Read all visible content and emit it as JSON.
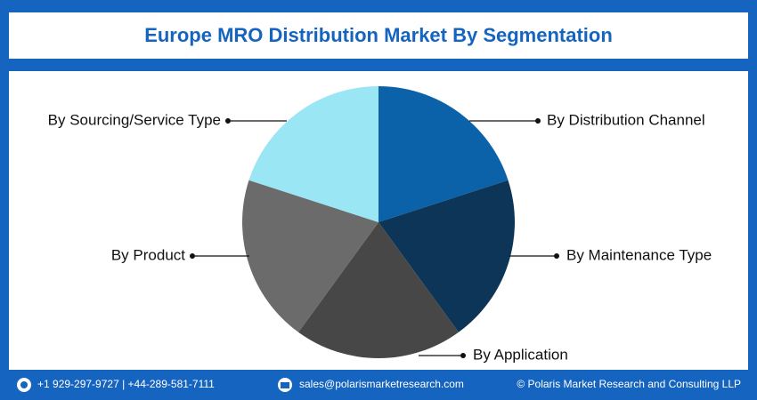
{
  "chart_data": {
    "type": "pie",
    "title": "Europe MRO Distribution Market By Segmentation",
    "categories": [
      "By Distribution Channel",
      "By Maintenance Type",
      "By Application",
      "By Product",
      "By Sourcing/Service Type"
    ],
    "values": [
      20,
      20,
      20,
      20,
      20
    ],
    "colors": [
      "#0b62a8",
      "#0d3558",
      "#474747",
      "#6b6b6b",
      "#9be6f5"
    ]
  },
  "footer": {
    "phone": "+1 929-297-9727 | +44-289-581-7111",
    "email": "sales@polarismarketresearch.com",
    "copyright": "© Polaris Market Research and Consulting LLP"
  }
}
